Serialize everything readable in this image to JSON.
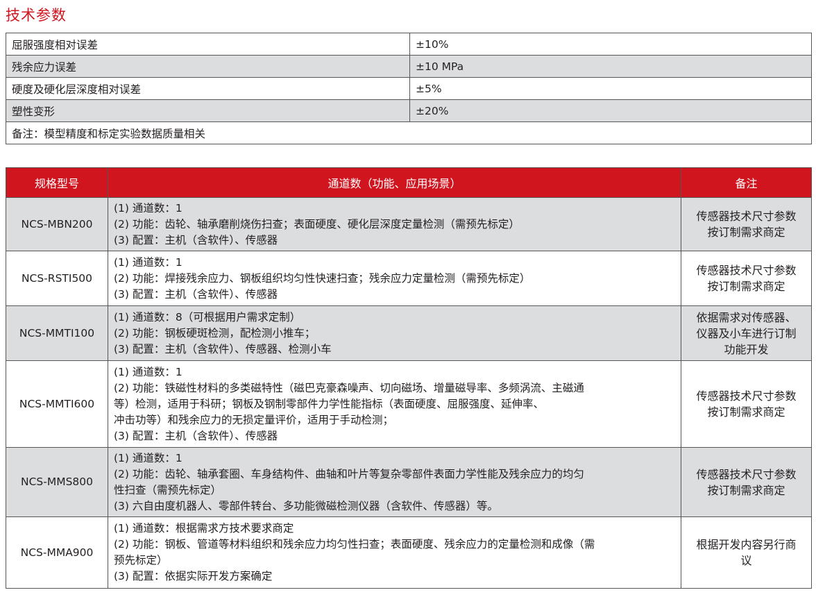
{
  "title": "技术参数",
  "params": [
    {
      "label": "屈服强度相对误差",
      "value": "±10%"
    },
    {
      "label": "残余应力误差",
      "value": "±10 MPa"
    },
    {
      "label": "硬度及硬化层深度相对误差",
      "value": "±5%"
    },
    {
      "label": "塑性变形",
      "value": "±20%"
    }
  ],
  "note": "备注：模型精度和标定实验数据质量相关",
  "colors": {
    "accent": "#d0151f",
    "row_gray": "#dcdddf"
  },
  "models": {
    "headers": [
      "规格型号",
      "通道数（功能、应用场景）",
      "备注"
    ],
    "rows": [
      {
        "model": "NCS-MBN200",
        "desc": [
          "(1) 通道数：1",
          "(2) 功能：齿轮、轴承磨削烧伤扫查；表面硬度、硬化层深度定量检测（需预先标定）",
          "(3) 配置：主机（含软件）、传感器"
        ],
        "remark": [
          "传感器技术尺寸参数",
          "按订制需求商定"
        ]
      },
      {
        "model": "NCS-RSTI500",
        "desc": [
          "(1) 通道数：1",
          "(2) 功能：焊接残余应力、钢板组织均匀性快速扫查；残余应力定量检测（需预先标定）",
          "(3) 配置：主机（含软件）、传感器"
        ],
        "remark": [
          "传感器技术尺寸参数",
          "按订制需求商定"
        ]
      },
      {
        "model": "NCS-MMTI100",
        "desc": [
          "(1) 通道数：8（可根据用户需求定制）",
          "(2) 功能：钢板硬斑检测，配检测小推车；",
          "(3) 配置：主机（含软件）、传感器、检测小车"
        ],
        "remark": [
          "依据需求对传感器、",
          "仪器及小车进行订制",
          "功能开发"
        ]
      },
      {
        "model": "NCS-MMTI600",
        "desc": [
          "(1) 通道数：1",
          "(2) 功能：铁磁性材料的多类磁特性（磁巴克豪森噪声、切向磁场、增量磁导率、多频涡流、主磁通",
          "等）检测，适用于科研；钢板及钢制零部件力学性能指标（表面硬度、屈服强度、延伸率、",
          "冲击功等）和残余应力的无损定量评价，适用于手动检测；",
          "(3) 配置：主机（含软件）、传感器"
        ],
        "remark": [
          "传感器技术尺寸参数",
          "按订制需求商定"
        ]
      },
      {
        "model": "NCS-MMS800",
        "desc": [
          "(1) 通道数：1",
          "(2) 功能：齿轮、轴承套圈、车身结构件、曲轴和叶片等复杂零部件表面力学性能及残余应力的均匀",
          "性扫查（需预先标定）",
          "(3) 六自由度机器人、零部件转台、多功能微磁检测仪器（含软件、传感器）等。"
        ],
        "remark": [
          "传感器技术尺寸参数",
          "按订制需求商定"
        ]
      },
      {
        "model": "NCS-MMA900",
        "desc": [
          "(1) 通道数：根据需求方技术要求商定",
          "(2) 功能：钢板、管道等材料组织和残余应力均匀性扫查；表面硬度、残余应力的定量检测和成像（需",
          "预先标定）",
          "(3) 配置：依据实际开发方案确定"
        ],
        "remark": [
          "根据开发内容另行商",
          "议"
        ]
      }
    ]
  }
}
